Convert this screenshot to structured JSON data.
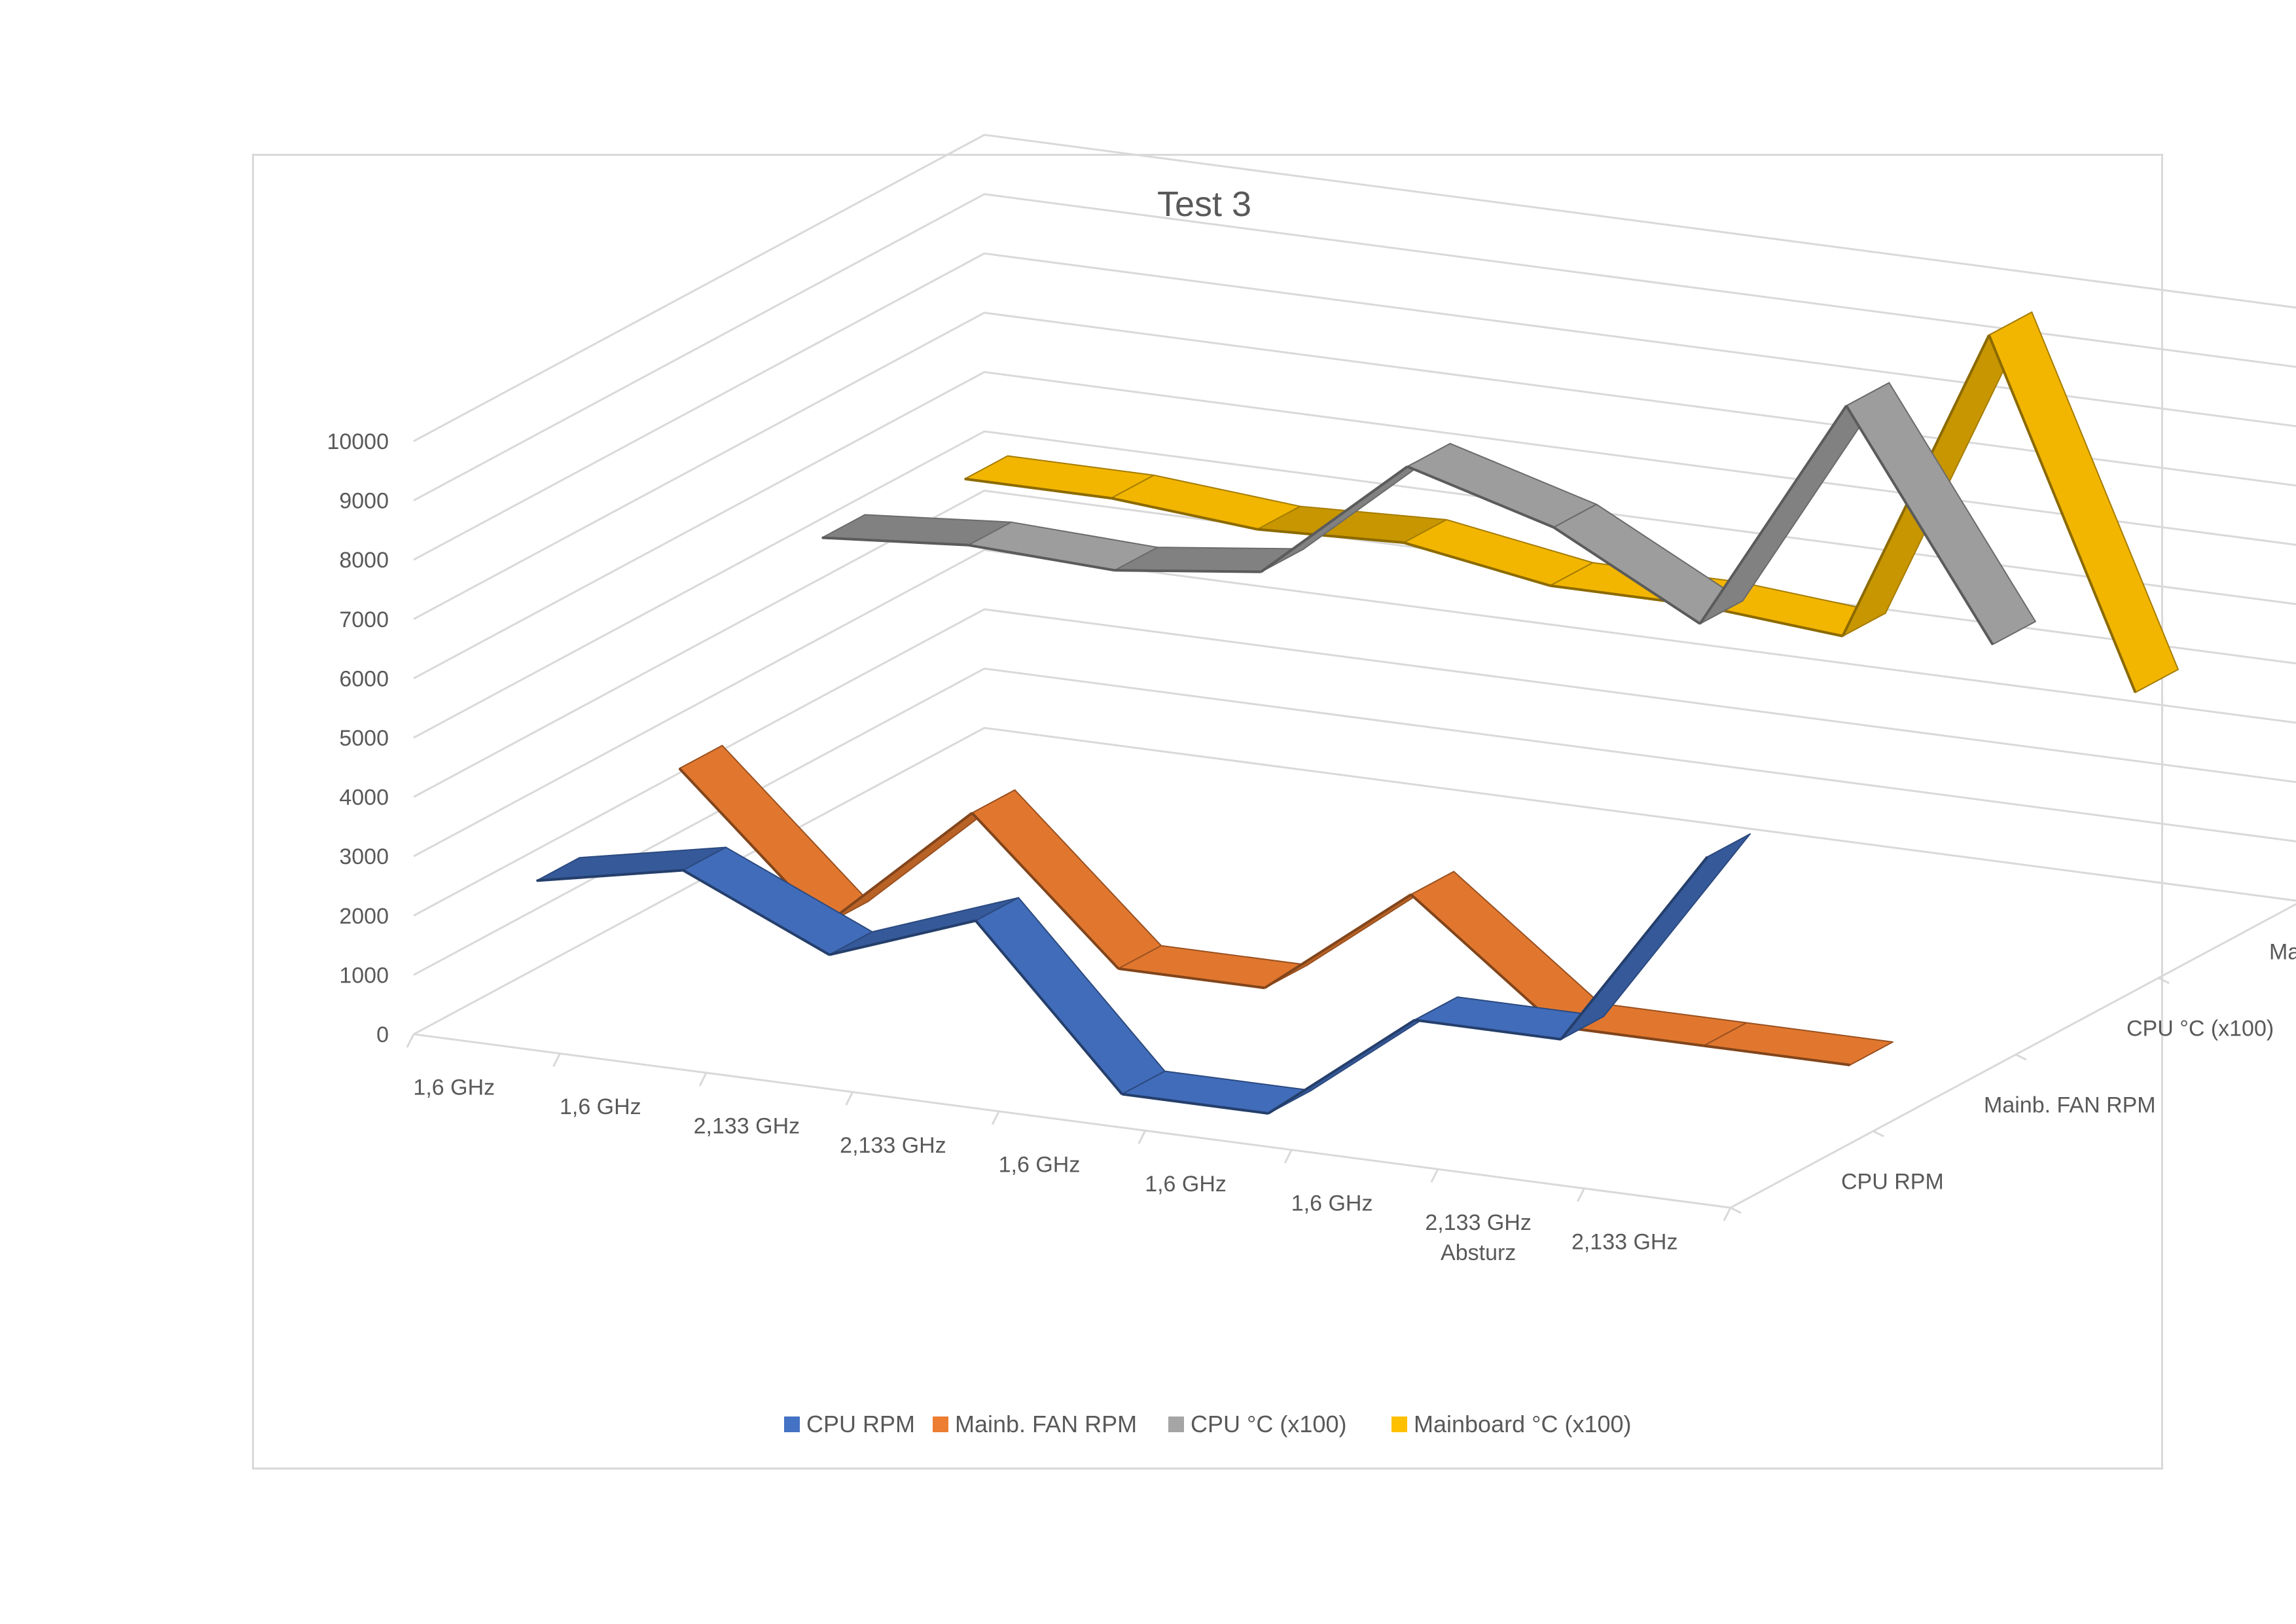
{
  "chart_data": {
    "type": "line",
    "variant": "3d-line",
    "title": "Test 3",
    "categories": [
      "1,6 GHz",
      "1,6 GHz",
      "2,133 GHz",
      "2,133 GHz",
      "1,6 GHz",
      "1,6 GHz",
      "1,6 GHz",
      "2,133 GHz\nAbsturz",
      "2,133 GHz"
    ],
    "ylim": [
      0,
      10000
    ],
    "yticks": [
      0,
      1000,
      2000,
      3000,
      4000,
      5000,
      6000,
      7000,
      8000,
      9000,
      10000
    ],
    "grid": true,
    "legend_position": "bottom",
    "series": [
      {
        "name": "CPU RPM",
        "color": "#4472C4",
        "values": [
          2300,
          2800,
          1700,
          2600,
          0,
          0,
          1900,
          1900,
          5300
        ]
      },
      {
        "name": "Mainb. FAN RPM",
        "color": "#ED7D31",
        "values": [
          2900,
          600,
          2800,
          500,
          500,
          2400,
          500,
          500,
          500
        ]
      },
      {
        "name": "CPU °C (x100)",
        "color": "#A5A5A5",
        "values": [
          5500,
          5700,
          5600,
          5900,
          8000,
          7300,
          6000,
          10000,
          6300
        ]
      },
      {
        "name": "Mainboard °C (x100)",
        "color": "#FFC000",
        "values": [
          5200,
          5200,
          5000,
          5100,
          4700,
          4700,
          4500,
          9900,
          4200
        ]
      }
    ]
  }
}
